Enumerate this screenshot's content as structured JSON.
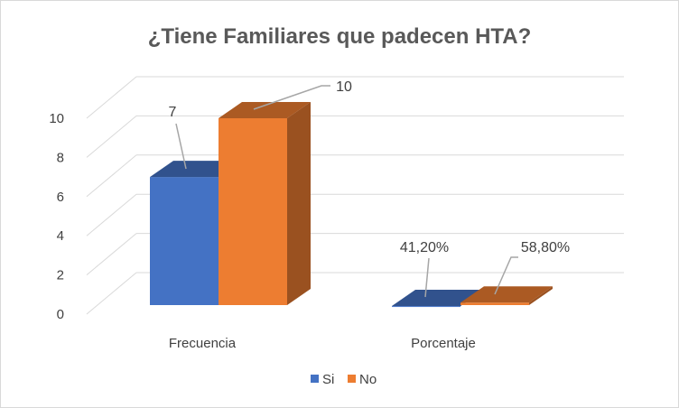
{
  "chart_data": {
    "type": "bar",
    "title": "¿Tiene Familiares que padecen HTA?",
    "xlabel": "",
    "ylabel": "",
    "categories": [
      "Frecuencia",
      "Porcentaje"
    ],
    "series": [
      {
        "name": "Si",
        "color": "#4472C4",
        "values": [
          7,
          0.412
        ],
        "data_labels": [
          "7",
          "41,20%"
        ]
      },
      {
        "name": "No",
        "color": "#ED7D31",
        "values": [
          10,
          0.588
        ],
        "data_labels": [
          "10",
          "58,80%"
        ]
      }
    ],
    "ylim": [
      0,
      10
    ],
    "y_ticks": [
      "0",
      "2",
      "4",
      "6",
      "8",
      "10"
    ],
    "grid": true,
    "legend_position": "bottom",
    "style": "3d-clustered-column"
  }
}
